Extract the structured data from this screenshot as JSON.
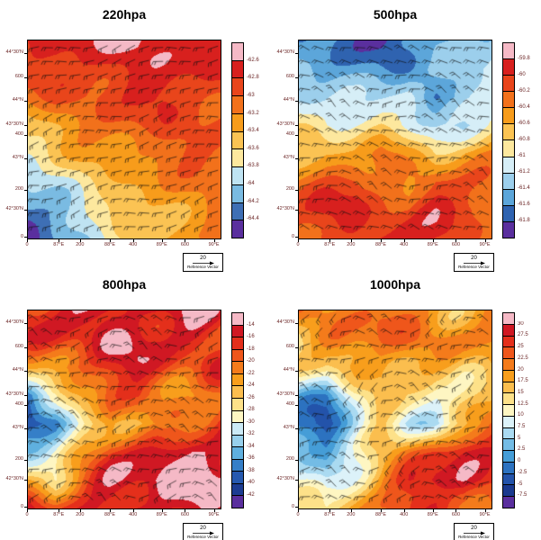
{
  "figure": {
    "background": "#ffffff"
  },
  "axes": {
    "x_note": "longitude 87°E–90°E with distance marks 0–600 km",
    "y_note": "latitude 42°30'N–44°30'N with distance marks 0–600 km",
    "x_ticks": [
      {
        "label": "0",
        "pos": 0.0
      },
      {
        "label": "87°E",
        "pos": 0.165
      },
      {
        "label": "200",
        "pos": 0.275
      },
      {
        "label": "88°E",
        "pos": 0.43
      },
      {
        "label": "400",
        "pos": 0.55
      },
      {
        "label": "89°E",
        "pos": 0.7
      },
      {
        "label": "600",
        "pos": 0.82
      },
      {
        "label": "90°E",
        "pos": 0.97
      }
    ],
    "y_ticks": [
      {
        "label": "44°30'N",
        "pos": 0.07
      },
      {
        "label": "600",
        "pos": 0.19
      },
      {
        "label": "44°N",
        "pos": 0.31
      },
      {
        "label": "43°30'N",
        "pos": 0.43
      },
      {
        "label": "400",
        "pos": 0.48
      },
      {
        "label": "43°N",
        "pos": 0.6
      },
      {
        "label": "200",
        "pos": 0.76
      },
      {
        "label": "42°30'N",
        "pos": 0.86
      },
      {
        "label": "0",
        "pos": 1.0
      }
    ]
  },
  "panels": [
    {
      "title": "220hpa",
      "colorbar_labels": [
        "-62.6",
        "-62.8",
        "-63",
        "-63.2",
        "-63.4",
        "-63.6",
        "-63.8",
        "-64",
        "-64.2",
        "-64.4"
      ],
      "reference_vector": {
        "value": "20",
        "label": "Reference Vector"
      }
    },
    {
      "title": "500hpa",
      "colorbar_labels": [
        "-59.8",
        "-60",
        "-60.2",
        "-60.4",
        "-60.6",
        "-60.8",
        "-61",
        "-61.2",
        "-61.4",
        "-61.6",
        "-61.8"
      ],
      "reference_vector": {
        "value": "20",
        "label": "Reference Vector"
      }
    },
    {
      "title": "800hpa",
      "colorbar_labels": [
        "-14",
        "-16",
        "-18",
        "-20",
        "-22",
        "-24",
        "-26",
        "-28",
        "-30",
        "-32",
        "-34",
        "-36",
        "-38",
        "-40",
        "-42"
      ],
      "reference_vector": {
        "value": "20",
        "label": "Reference Vector"
      }
    },
    {
      "title": "1000hpa",
      "colorbar_labels": [
        "30",
        "27.5",
        "25",
        "22.5",
        "20",
        "17.5",
        "15",
        "12.5",
        "10",
        "7.5",
        "5",
        "2.5",
        "0",
        "-2.5",
        "-5",
        "-7.5"
      ],
      "reference_vector": {
        "value": "20",
        "label": "Reference Vector"
      }
    }
  ],
  "chart_data": [
    {
      "type": "heatmap",
      "title": "220hpa",
      "description": "Filled temperature contours (°C) with wind barb overlay; warm (red) band across top, cold (blue) pocket lower-left, diagonal banding",
      "levels": [
        -62.6,
        -62.8,
        -63,
        -63.2,
        -63.4,
        -63.6,
        -63.8,
        -64,
        -64.2,
        -64.4
      ],
      "palette": [
        "#F5B9C6",
        "#D8201E",
        "#E9451B",
        "#F2711B",
        "#F79C1B",
        "#FBC353",
        "#FDE89E",
        "#BFE3F2",
        "#7ABBE2",
        "#3E6FB5",
        "#5A2F9E"
      ],
      "grid": [
        [
          -62.8,
          -62.7,
          -62.7,
          -62.6,
          -62.55,
          -62.6,
          -62.65,
          -62.7
        ],
        [
          -62.9,
          -62.85,
          -62.8,
          -62.75,
          -62.7,
          -62.7,
          -62.75,
          -62.8
        ],
        [
          -63.1,
          -63.0,
          -62.95,
          -62.9,
          -62.85,
          -62.8,
          -62.85,
          -62.9
        ],
        [
          -63.45,
          -63.3,
          -63.2,
          -63.05,
          -62.95,
          -62.9,
          -62.95,
          -63.0
        ],
        [
          -63.75,
          -63.55,
          -63.4,
          -63.3,
          -63.15,
          -63.05,
          -63.0,
          -63.05
        ],
        [
          -64.05,
          -63.85,
          -63.6,
          -63.5,
          -63.35,
          -63.2,
          -63.15,
          -63.1
        ],
        [
          -64.3,
          -64.1,
          -63.85,
          -63.6,
          -63.5,
          -63.35,
          -63.25,
          -63.2
        ],
        [
          -64.5,
          -64.25,
          -64.0,
          -63.75,
          -63.55,
          -63.4,
          -63.3,
          -63.2
        ]
      ],
      "wind": {
        "reference": 20,
        "base_angle_deg": -12,
        "variation_deg": 20
      },
      "noise_amp": 0.1
    },
    {
      "type": "heatmap",
      "title": "500hpa",
      "description": "Filled temperature contours (°C) with wind barbs; cold (blue) upper half, warm (orange/yellow) patchy lower half",
      "levels": [
        -59.8,
        -60,
        -60.2,
        -60.4,
        -60.6,
        -60.8,
        -61,
        -61.2,
        -61.4,
        -61.6,
        -61.8
      ],
      "palette": [
        "#F5B9C6",
        "#D8201E",
        "#E9451B",
        "#F2711B",
        "#F79C1B",
        "#FBC353",
        "#FDE89E",
        "#D6EEF7",
        "#9CCFEC",
        "#5CA6DA",
        "#2F63B0",
        "#5A2F9E"
      ],
      "grid": [
        [
          -61.5,
          -61.6,
          -61.7,
          -61.85,
          -61.7,
          -61.5,
          -61.4,
          -61.3
        ],
        [
          -61.3,
          -61.5,
          -61.6,
          -61.6,
          -61.5,
          -61.3,
          -61.2,
          -61.1
        ],
        [
          -61.1,
          -61.2,
          -61.3,
          -61.2,
          -61.1,
          -61.65,
          -61.4,
          -61.2
        ],
        [
          -60.9,
          -61.0,
          -60.9,
          -60.8,
          -61.0,
          -61.2,
          -61.3,
          -60.9
        ],
        [
          -60.7,
          -60.5,
          -60.6,
          -60.4,
          -60.6,
          -60.8,
          -60.5,
          -60.4
        ],
        [
          -60.3,
          -60.2,
          -60.1,
          -60.3,
          -60.4,
          -60.1,
          -60.2,
          -60.3
        ],
        [
          -60.1,
          -60.0,
          -59.9,
          -60.1,
          -60.2,
          -59.95,
          -60.0,
          -60.2
        ],
        [
          -60.2,
          -60.1,
          -60.0,
          -59.9,
          -59.85,
          -60.0,
          -60.1,
          -60.3
        ]
      ],
      "wind": {
        "reference": 20,
        "base_angle_deg": 18,
        "variation_deg": 38
      },
      "noise_amp": 0.11
    },
    {
      "type": "heatmap",
      "title": "800hpa",
      "description": "Filled temperature contours (°C) with wind barbs; warm (red/orange) field, cold (blue) ragged band mid-left, very warm (pink) ellipse lower-right ringed by dark red",
      "levels": [
        -14,
        -16,
        -18,
        -20,
        -22,
        -24,
        -26,
        -28,
        -30,
        -32,
        -34,
        -36,
        -38,
        -40,
        -42
      ],
      "palette": [
        "#F5B9C6",
        "#D01823",
        "#E42F1B",
        "#EF561B",
        "#F47B1B",
        "#F89E1C",
        "#FBBE4E",
        "#FDE189",
        "#FEF6C2",
        "#CBEAF6",
        "#97D0EC",
        "#5FB0DF",
        "#357FC8",
        "#2659AF",
        "#1C3C92",
        "#5A2F9E"
      ],
      "grid": [
        [
          -17,
          -16,
          -15,
          -14,
          -14,
          -15,
          -15,
          -16
        ],
        [
          -18,
          -17,
          -16,
          -15,
          -15,
          -16,
          -16,
          -17
        ],
        [
          -24,
          -20,
          -18,
          -17,
          -16,
          -17,
          -18,
          -18
        ],
        [
          -36,
          -32,
          -24,
          -19,
          -18,
          -20,
          -22,
          -20
        ],
        [
          -40,
          -37,
          -28,
          -21,
          -24,
          -26,
          -22,
          -17
        ],
        [
          -34,
          -30,
          -24,
          -18,
          -16,
          -14,
          -13,
          -13
        ],
        [
          -22,
          -26,
          -20,
          -16,
          -14,
          -12,
          -12,
          -14
        ],
        [
          -17,
          -19,
          -17,
          -15,
          -15,
          -14,
          -15,
          -16
        ]
      ],
      "wind": {
        "reference": 20,
        "base_angle_deg": 8,
        "variation_deg": 48
      },
      "noise_amp": 2.2
    },
    {
      "type": "heatmap",
      "title": "1000hpa",
      "description": "Filled temperature contours (°C) with wind barbs; warm (orange) field, cold (blue) pocket left-center, hot (dark red) ellipse lower-right",
      "levels": [
        30,
        27.5,
        25,
        22.5,
        20,
        17.5,
        15,
        12.5,
        10,
        7.5,
        5,
        2.5,
        0,
        -2.5,
        -5,
        -7.5
      ],
      "palette": [
        "#F5B9C6",
        "#D01823",
        "#E42F1B",
        "#EF561B",
        "#F47B1B",
        "#F89E1C",
        "#FBBE4E",
        "#FDE189",
        "#FEF6C2",
        "#DCF2F9",
        "#AADAF1",
        "#74BCE5",
        "#459DD7",
        "#2C72C0",
        "#2353AA",
        "#1A398E",
        "#5A2F9E"
      ],
      "grid": [
        [
          20,
          21,
          22,
          22,
          21,
          20,
          19,
          19
        ],
        [
          18,
          20,
          21,
          23,
          22,
          21,
          20,
          20
        ],
        [
          14,
          13,
          18,
          21,
          19,
          16,
          15,
          18
        ],
        [
          4,
          1,
          10,
          17,
          12,
          10,
          13,
          18
        ],
        [
          -1,
          -3,
          6,
          14,
          10,
          8,
          15,
          22
        ],
        [
          3,
          1,
          8,
          16,
          21,
          25,
          27,
          27
        ],
        [
          9,
          7,
          14,
          20,
          26,
          29,
          30,
          26
        ],
        [
          14,
          13,
          17,
          21,
          24,
          27,
          26,
          22
        ]
      ],
      "wind": {
        "reference": 20,
        "base_angle_deg": -4,
        "variation_deg": 58
      },
      "noise_amp": 2.4
    }
  ]
}
